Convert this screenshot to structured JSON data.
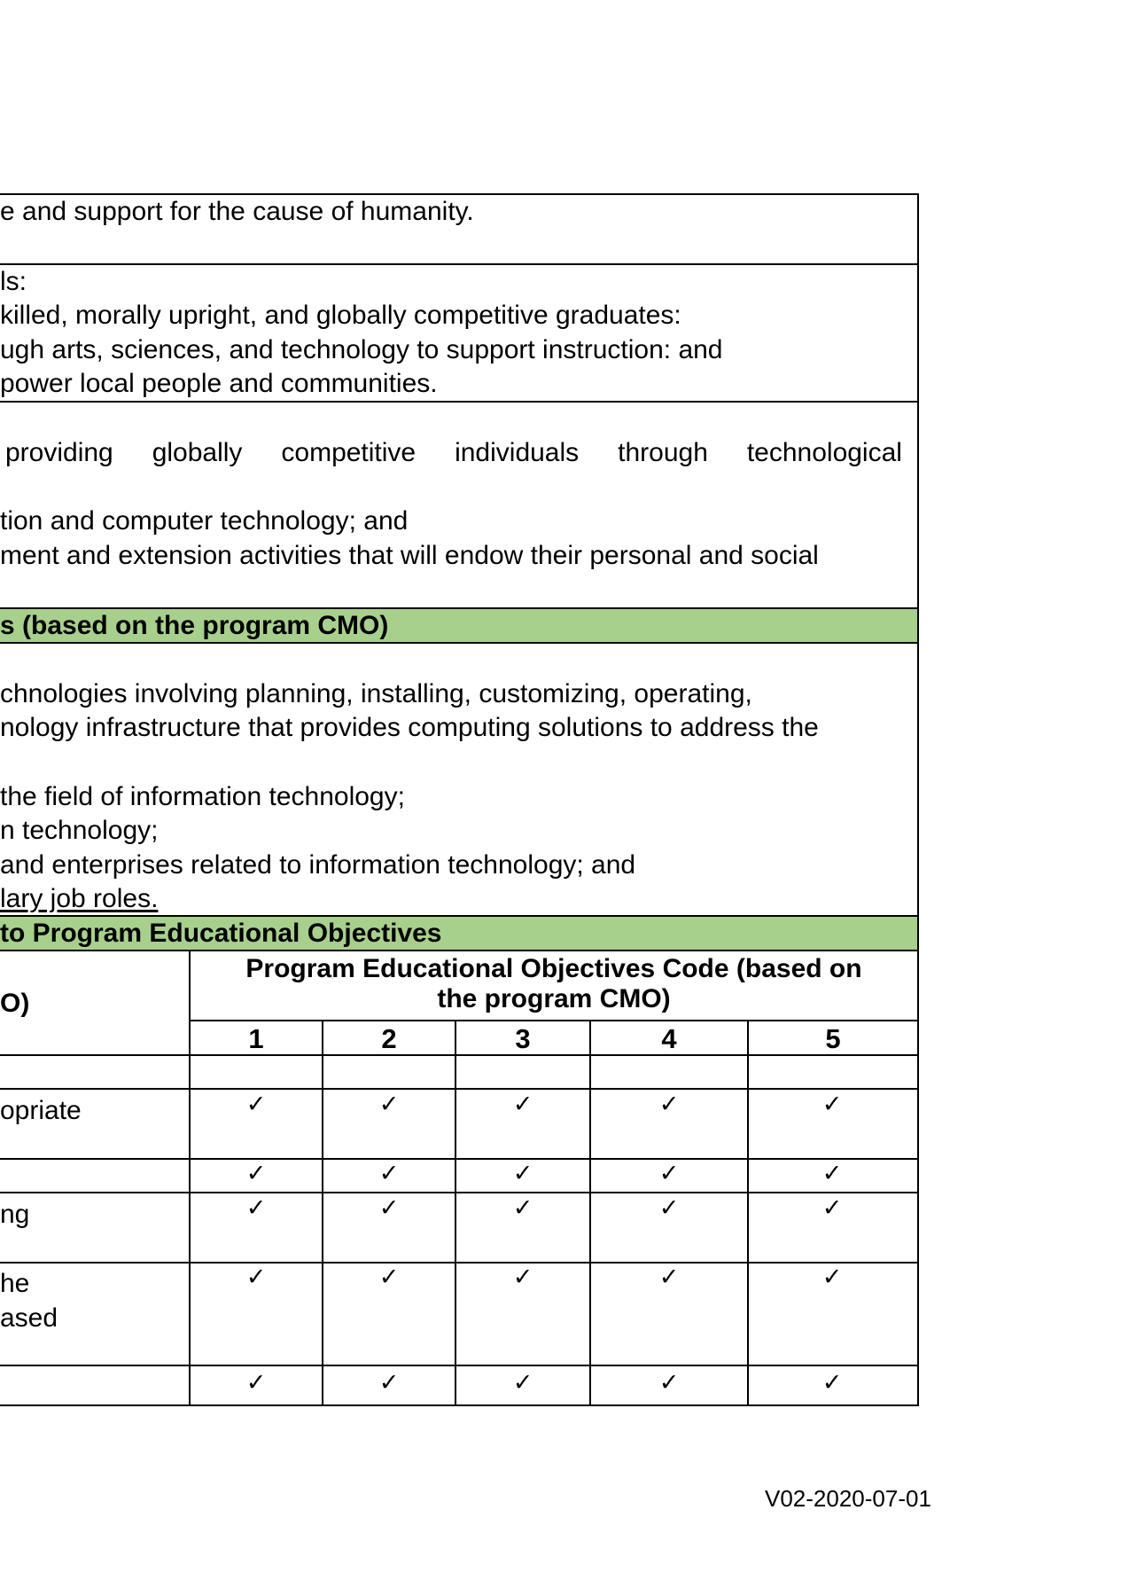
{
  "statement_lines": [
    "e and support for the cause of humanity."
  ],
  "goals_lines": [
    "ls:",
    "killed, morally upright, and globally competitive graduates:",
    "ugh arts, sciences, and technology to support instruction: and",
    "power local people and communities."
  ],
  "objectives_justified_words": [
    "providing",
    "globally",
    "competitive",
    "individuals",
    "through",
    "technological"
  ],
  "objectives_lines": [
    "tion and computer technology; and",
    "ment and extension activities that will endow their personal and social"
  ],
  "peo_header": "s (based on the program CMO)",
  "peo_lines": [
    "chnologies involving planning, installing, customizing, operating,",
    "nology infrastructure that provides computing solutions to address the",
    "the field of information technology;",
    "n technology;",
    " and enterprises related to information technology; and",
    "lary job roles."
  ],
  "mapping_header": "to Program Educational Objectives",
  "table": {
    "left_header": "O)",
    "objectives_header_line1": "Program Educational Objectives Code (based on",
    "objectives_header_line2": "the program CMO)",
    "codes": [
      "1",
      "2",
      "3",
      "4",
      "5"
    ],
    "rows": [
      {
        "label": "",
        "marks": [
          "",
          "",
          "",
          "",
          ""
        ]
      },
      {
        "label": "opriate",
        "marks": [
          "✓",
          "✓",
          "✓",
          "✓",
          "✓"
        ]
      },
      {
        "label": "",
        "marks": [
          "✓",
          "✓",
          "✓",
          "✓",
          "✓"
        ]
      },
      {
        "label": "ng",
        "marks": [
          "✓",
          "✓",
          "✓",
          "✓",
          "✓"
        ]
      },
      {
        "label": "he",
        "label2": "ased",
        "marks": [
          "✓",
          "✓",
          "✓",
          "✓",
          "✓"
        ]
      },
      {
        "label": "",
        "marks": [
          "✓",
          "✓",
          "✓",
          "✓",
          "✓"
        ]
      }
    ]
  },
  "version": "V02-2020-07-01",
  "colors": {
    "header_band": "#a8d08d"
  }
}
